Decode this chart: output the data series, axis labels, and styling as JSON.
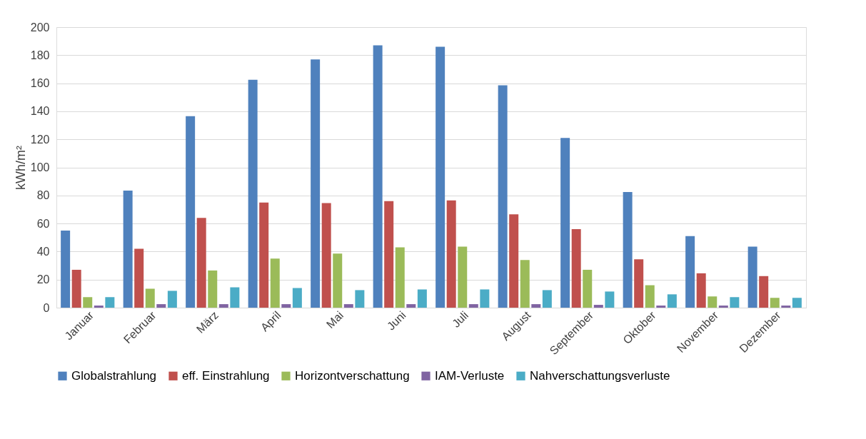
{
  "chart_data": {
    "type": "bar",
    "ylabel": "kWh/m²",
    "categories": [
      "Januar",
      "Februar",
      "März",
      "April",
      "Mai",
      "Juni",
      "Juli",
      "August",
      "September",
      "Oktober",
      "November",
      "Dezember"
    ],
    "series": [
      {
        "name": "Globalstrahlung",
        "color": "#4f81bd",
        "values": [
          55,
          83.5,
          136.5,
          162.5,
          177,
          187,
          186,
          158.5,
          121,
          82.5,
          51,
          43.5
        ]
      },
      {
        "name": "eff. Einstrahlung",
        "color": "#c0504d",
        "values": [
          27,
          42,
          64,
          75,
          74.5,
          76,
          76.5,
          66.5,
          56,
          34.5,
          24.5,
          22.5
        ]
      },
      {
        "name": "Horizontverschattung",
        "color": "#9bbb59",
        "values": [
          7.5,
          13.5,
          26.5,
          35,
          38.5,
          43,
          43.5,
          34,
          27,
          16,
          8,
          7
        ]
      },
      {
        "name": "IAM-Verluste",
        "color": "#8064a2",
        "values": [
          1.5,
          2.5,
          2.5,
          2.5,
          2.5,
          2.5,
          2.5,
          2.5,
          2,
          1.5,
          1.5,
          1.5
        ]
      },
      {
        "name": "Nahverschattungsverluste",
        "color": "#4bacc6",
        "values": [
          7.5,
          12,
          14.5,
          14,
          12.5,
          13,
          13,
          12.5,
          11.5,
          9.5,
          7.5,
          7
        ]
      }
    ],
    "ylim": [
      0,
      200
    ],
    "yticks": [
      0,
      20,
      40,
      60,
      80,
      100,
      120,
      140,
      160,
      180,
      200
    ],
    "grid": "y",
    "legend": "bottom"
  }
}
